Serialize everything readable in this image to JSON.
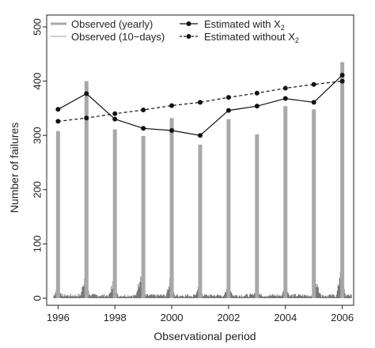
{
  "chart_data": {
    "type": "bar",
    "xlabel": "Observational period",
    "ylabel": "Number of failures",
    "xlim": [
      1995.6,
      2006.4
    ],
    "ylim": [
      0,
      500
    ],
    "x_ticks": [
      1996,
      1998,
      2000,
      2002,
      2004,
      2006
    ],
    "y_ticks": [
      0,
      100,
      200,
      300,
      400,
      500
    ],
    "grid": false,
    "legend_position": "top",
    "legend": {
      "observed_yearly": "Observed (yearly)",
      "observed_10days": "Observed (10−days)",
      "estimated_with": "Estimated with X",
      "estimated_with_sub": "2",
      "estimated_without": "Estimated without X",
      "estimated_without_sub": "2"
    },
    "series": [
      {
        "name": "Observed (yearly)",
        "kind": "bar",
        "color": "#a8a8a8",
        "x": [
          1996,
          1997,
          1998,
          1999,
          2000,
          2001,
          2002,
          2003,
          2004,
          2005,
          2006
        ],
        "values": [
          308,
          400,
          311,
          299,
          332,
          283,
          330,
          302,
          354,
          348,
          435
        ]
      },
      {
        "name": "Observed (10−days)",
        "kind": "spikes",
        "color": "#777777",
        "peaks": [
          {
            "x": 1996.0,
            "y": 26
          },
          {
            "x": 1996.95,
            "y": 55
          },
          {
            "x": 1997.95,
            "y": 40
          },
          {
            "x": 1998.9,
            "y": 50
          },
          {
            "x": 1999.95,
            "y": 42
          },
          {
            "x": 2000.95,
            "y": 24
          },
          {
            "x": 2002.0,
            "y": 38
          },
          {
            "x": 2003.0,
            "y": 22
          },
          {
            "x": 2004.0,
            "y": 27
          },
          {
            "x": 2005.1,
            "y": 34
          },
          {
            "x": 2005.95,
            "y": 58
          }
        ]
      },
      {
        "name": "Estimated with X2",
        "kind": "line",
        "style": "solid",
        "color": "#111111",
        "x": [
          1996,
          1997,
          1998,
          1999,
          2000,
          2001,
          2002,
          2003,
          2004,
          2005,
          2006
        ],
        "values": [
          348,
          377,
          330,
          313,
          309,
          300,
          346,
          354,
          368,
          361,
          411
        ]
      },
      {
        "name": "Estimated without X2",
        "kind": "line",
        "style": "dashed",
        "color": "#111111",
        "x": [
          1996,
          1997,
          1998,
          1999,
          2000,
          2001,
          2002,
          2003,
          2004,
          2005,
          2006
        ],
        "values": [
          326,
          332,
          340,
          347,
          355,
          361,
          370,
          378,
          387,
          394,
          400
        ]
      }
    ]
  }
}
